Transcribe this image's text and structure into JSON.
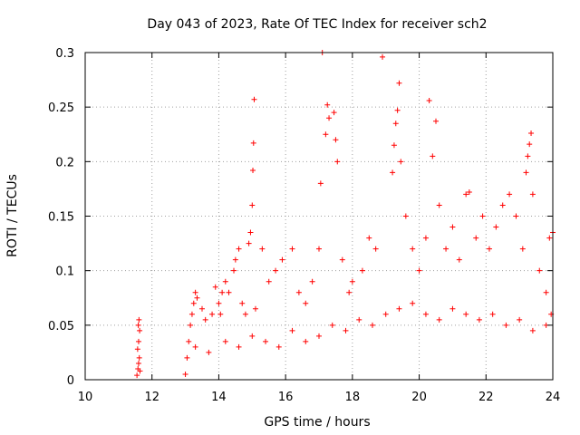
{
  "chart_data": {
    "type": "scatter",
    "title": "Day 043 of 2023, Rate Of TEC Index for receiver sch2",
    "xlabel": "GPS time / hours",
    "ylabel": "ROTI / TECUs",
    "xlim": [
      10,
      24
    ],
    "ylim": [
      0,
      0.3
    ],
    "xticks": [
      10,
      12,
      14,
      16,
      18,
      20,
      22,
      24
    ],
    "yticks": [
      0,
      0.05,
      0.1,
      0.15,
      0.2,
      0.25,
      0.3
    ],
    "grid": true,
    "marker": "plus",
    "color": "#ff0000",
    "series": [
      {
        "points": [
          [
            11.55,
            0.004
          ],
          [
            11.58,
            0.01
          ],
          [
            11.6,
            0.015
          ],
          [
            11.62,
            0.02
          ],
          [
            11.57,
            0.028
          ],
          [
            11.6,
            0.035
          ],
          [
            11.63,
            0.045
          ],
          [
            11.59,
            0.05
          ],
          [
            11.61,
            0.055
          ],
          [
            11.64,
            0.008
          ],
          [
            13.0,
            0.005
          ],
          [
            13.05,
            0.02
          ],
          [
            13.1,
            0.035
          ],
          [
            13.15,
            0.05
          ],
          [
            13.2,
            0.06
          ],
          [
            13.25,
            0.07
          ],
          [
            13.3,
            0.08
          ],
          [
            13.35,
            0.075
          ],
          [
            13.5,
            0.065
          ],
          [
            13.6,
            0.055
          ],
          [
            13.8,
            0.06
          ],
          [
            13.9,
            0.085
          ],
          [
            14.0,
            0.07
          ],
          [
            14.05,
            0.06
          ],
          [
            14.1,
            0.08
          ],
          [
            14.2,
            0.09
          ],
          [
            14.3,
            0.08
          ],
          [
            14.45,
            0.1
          ],
          [
            14.5,
            0.11
          ],
          [
            14.6,
            0.12
          ],
          [
            14.7,
            0.07
          ],
          [
            14.8,
            0.06
          ],
          [
            14.9,
            0.125
          ],
          [
            14.95,
            0.135
          ],
          [
            15.0,
            0.16
          ],
          [
            15.02,
            0.192
          ],
          [
            15.04,
            0.217
          ],
          [
            15.06,
            0.257
          ],
          [
            15.1,
            0.065
          ],
          [
            15.3,
            0.12
          ],
          [
            15.5,
            0.09
          ],
          [
            15.7,
            0.1
          ],
          [
            15.9,
            0.11
          ],
          [
            16.2,
            0.12
          ],
          [
            16.4,
            0.08
          ],
          [
            16.6,
            0.07
          ],
          [
            16.8,
            0.09
          ],
          [
            17.0,
            0.12
          ],
          [
            17.05,
            0.18
          ],
          [
            17.1,
            0.3
          ],
          [
            17.2,
            0.225
          ],
          [
            17.25,
            0.252
          ],
          [
            17.3,
            0.24
          ],
          [
            17.45,
            0.245
          ],
          [
            17.5,
            0.22
          ],
          [
            17.55,
            0.2
          ],
          [
            17.7,
            0.11
          ],
          [
            17.9,
            0.08
          ],
          [
            18.0,
            0.09
          ],
          [
            18.3,
            0.1
          ],
          [
            18.5,
            0.13
          ],
          [
            18.7,
            0.12
          ],
          [
            18.9,
            0.296
          ],
          [
            19.2,
            0.19
          ],
          [
            19.25,
            0.215
          ],
          [
            19.3,
            0.235
          ],
          [
            19.35,
            0.247
          ],
          [
            19.4,
            0.272
          ],
          [
            19.45,
            0.2
          ],
          [
            19.6,
            0.15
          ],
          [
            19.8,
            0.12
          ],
          [
            20.0,
            0.1
          ],
          [
            20.2,
            0.13
          ],
          [
            20.3,
            0.256
          ],
          [
            20.4,
            0.205
          ],
          [
            20.5,
            0.237
          ],
          [
            20.6,
            0.16
          ],
          [
            20.8,
            0.12
          ],
          [
            21.0,
            0.14
          ],
          [
            21.2,
            0.11
          ],
          [
            21.4,
            0.17
          ],
          [
            21.5,
            0.172
          ],
          [
            21.7,
            0.13
          ],
          [
            21.9,
            0.15
          ],
          [
            22.1,
            0.12
          ],
          [
            22.3,
            0.14
          ],
          [
            22.5,
            0.16
          ],
          [
            22.7,
            0.17
          ],
          [
            22.9,
            0.15
          ],
          [
            23.1,
            0.12
          ],
          [
            23.2,
            0.19
          ],
          [
            23.25,
            0.205
          ],
          [
            23.3,
            0.216
          ],
          [
            23.35,
            0.226
          ],
          [
            23.4,
            0.17
          ],
          [
            23.6,
            0.1
          ],
          [
            23.8,
            0.08
          ],
          [
            23.9,
            0.13
          ],
          [
            24.0,
            0.135
          ],
          [
            23.95,
            0.06
          ],
          [
            13.3,
            0.03
          ],
          [
            13.7,
            0.025
          ],
          [
            14.2,
            0.035
          ],
          [
            14.6,
            0.03
          ],
          [
            15.0,
            0.04
          ],
          [
            15.4,
            0.035
          ],
          [
            15.8,
            0.03
          ],
          [
            16.2,
            0.045
          ],
          [
            16.6,
            0.035
          ],
          [
            17.0,
            0.04
          ],
          [
            17.4,
            0.05
          ],
          [
            17.8,
            0.045
          ],
          [
            18.2,
            0.055
          ],
          [
            18.6,
            0.05
          ],
          [
            19.0,
            0.06
          ],
          [
            19.4,
            0.065
          ],
          [
            19.8,
            0.07
          ],
          [
            20.2,
            0.06
          ],
          [
            20.6,
            0.055
          ],
          [
            21.0,
            0.065
          ],
          [
            21.4,
            0.06
          ],
          [
            21.8,
            0.055
          ],
          [
            22.2,
            0.06
          ],
          [
            22.6,
            0.05
          ],
          [
            23.0,
            0.055
          ],
          [
            23.4,
            0.045
          ],
          [
            23.8,
            0.05
          ]
        ]
      }
    ]
  }
}
